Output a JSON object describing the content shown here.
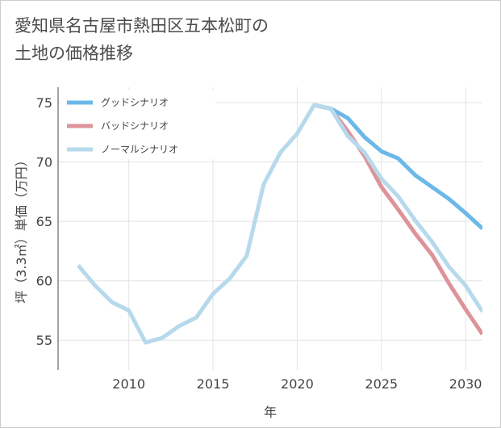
{
  "chart_data": {
    "type": "line",
    "title_lines": [
      "愛知県名古屋市熱田区五本松町の",
      "土地の価格推移"
    ],
    "xlabel": "年",
    "ylabel": "坪（3.3㎡）単価（万円）",
    "xlim": [
      2005.8,
      2031
    ],
    "ylim": [
      52.5,
      76.3
    ],
    "xticks": [
      2010,
      2015,
      2020,
      2025,
      2030
    ],
    "yticks": [
      55,
      60,
      65,
      70,
      75
    ],
    "grid": true,
    "legend_position": "top-left",
    "series": [
      {
        "name": "グッドシナリオ",
        "color": "#6cb8e9",
        "x": [
          2021,
          2022,
          2023,
          2024,
          2025,
          2026,
          2027,
          2028,
          2029,
          2030,
          2031
        ],
        "values": [
          74.8,
          74.5,
          73.7,
          72.1,
          70.9,
          70.3,
          68.9,
          67.9,
          66.9,
          65.7,
          64.4
        ]
      },
      {
        "name": "バッドシナリオ",
        "color": "#dd9399",
        "x": [
          2021,
          2022,
          2023,
          2024,
          2025,
          2026,
          2027,
          2028,
          2029,
          2030,
          2031
        ],
        "values": [
          74.8,
          74.5,
          72.6,
          70.5,
          67.9,
          66.0,
          64.0,
          62.2,
          59.8,
          57.6,
          55.5
        ]
      },
      {
        "name": "ノーマルシナリオ",
        "color": "#b7d9ec",
        "x": [
          2007,
          2008,
          2009,
          2010,
          2011,
          2012,
          2013,
          2014,
          2015,
          2016,
          2017,
          2018,
          2019,
          2020,
          2021,
          2022,
          2023,
          2024,
          2025,
          2026,
          2027,
          2028,
          2029,
          2030,
          2031
        ],
        "values": [
          61.3,
          59.6,
          58.2,
          57.5,
          54.8,
          55.2,
          56.2,
          56.9,
          58.9,
          60.2,
          62.1,
          68.1,
          70.8,
          72.4,
          74.8,
          74.5,
          72.2,
          70.8,
          68.6,
          67.1,
          65.1,
          63.3,
          61.2,
          59.6,
          57.4
        ]
      }
    ]
  }
}
